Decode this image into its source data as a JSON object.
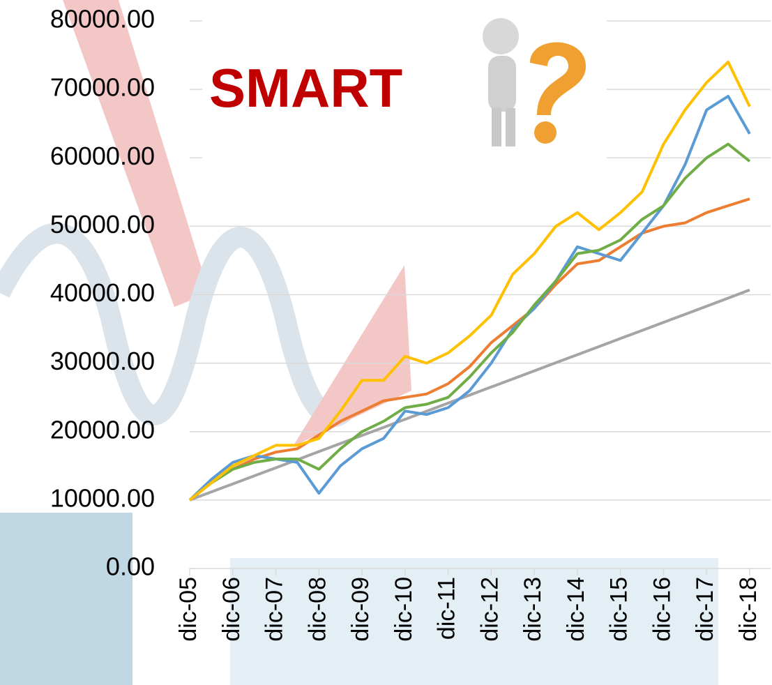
{
  "chart_data": {
    "type": "line",
    "title": "SMART",
    "categories": [
      "dic-05",
      null,
      "dic-06",
      null,
      "dic-07",
      null,
      "dic-08",
      null,
      "dic-09",
      null,
      "dic-10",
      null,
      "dic-11",
      null,
      "dic-12",
      null,
      "dic-13",
      null,
      "dic-14",
      null,
      "dic-15",
      null,
      "dic-16",
      null,
      "dic-17",
      null,
      "dic-18"
    ],
    "series": [
      {
        "color": "#a5a5a5",
        "values": [
          10000,
          11180,
          12360,
          13540,
          14720,
          15900,
          17080,
          18260,
          19440,
          20620,
          21800,
          22980,
          24160,
          25340,
          26520,
          27700,
          28880,
          30060,
          31240,
          32420,
          33600,
          34780,
          35960,
          37140,
          38320,
          39500,
          40700
        ]
      },
      {
        "color": "#ed7d31",
        "values": [
          10000,
          12500,
          14500,
          16000,
          17000,
          17500,
          19500,
          21500,
          23000,
          24500,
          25000,
          25500,
          27000,
          29500,
          33000,
          35500,
          38000,
          41500,
          44500,
          45000,
          47000,
          49000,
          50000,
          50500,
          52000,
          53000,
          54000
        ]
      },
      {
        "color": "#5b9bd5",
        "values": [
          10000,
          13000,
          15500,
          16500,
          16000,
          15500,
          11000,
          15000,
          17500,
          19000,
          23000,
          22500,
          23500,
          26000,
          30000,
          35000,
          38000,
          42000,
          47000,
          46000,
          45000,
          49000,
          53000,
          59000,
          67000,
          69000,
          63500
        ]
      },
      {
        "color": "#70ad47",
        "values": [
          10000,
          12500,
          14500,
          15500,
          16000,
          16000,
          14500,
          17500,
          20000,
          21500,
          23500,
          24000,
          25000,
          28000,
          31500,
          34500,
          38500,
          42000,
          46000,
          46500,
          48000,
          51000,
          53000,
          57000,
          60000,
          62000,
          59500
        ]
      },
      {
        "color": "#ffc000",
        "values": [
          10000,
          12500,
          15000,
          16500,
          18000,
          18000,
          19000,
          23000,
          27500,
          27500,
          31000,
          30000,
          31500,
          34000,
          37000,
          43000,
          46000,
          50000,
          52000,
          49500,
          52000,
          55000,
          62000,
          67000,
          71000,
          74000,
          67500
        ]
      }
    ],
    "ylim": [
      0,
      80000
    ],
    "yticks": [
      {
        "value": 0,
        "label": "0.00"
      },
      {
        "value": 10000,
        "label": "10000.00"
      },
      {
        "value": 20000,
        "label": "20000.00"
      },
      {
        "value": 30000,
        "label": "30000.00"
      },
      {
        "value": 40000,
        "label": "40000.00"
      },
      {
        "value": 50000,
        "label": "50000.00"
      },
      {
        "value": 60000,
        "label": "60000.00"
      },
      {
        "value": 70000,
        "label": "70000.00"
      },
      {
        "value": 80000,
        "label": "80000.00"
      }
    ],
    "grid": true
  }
}
